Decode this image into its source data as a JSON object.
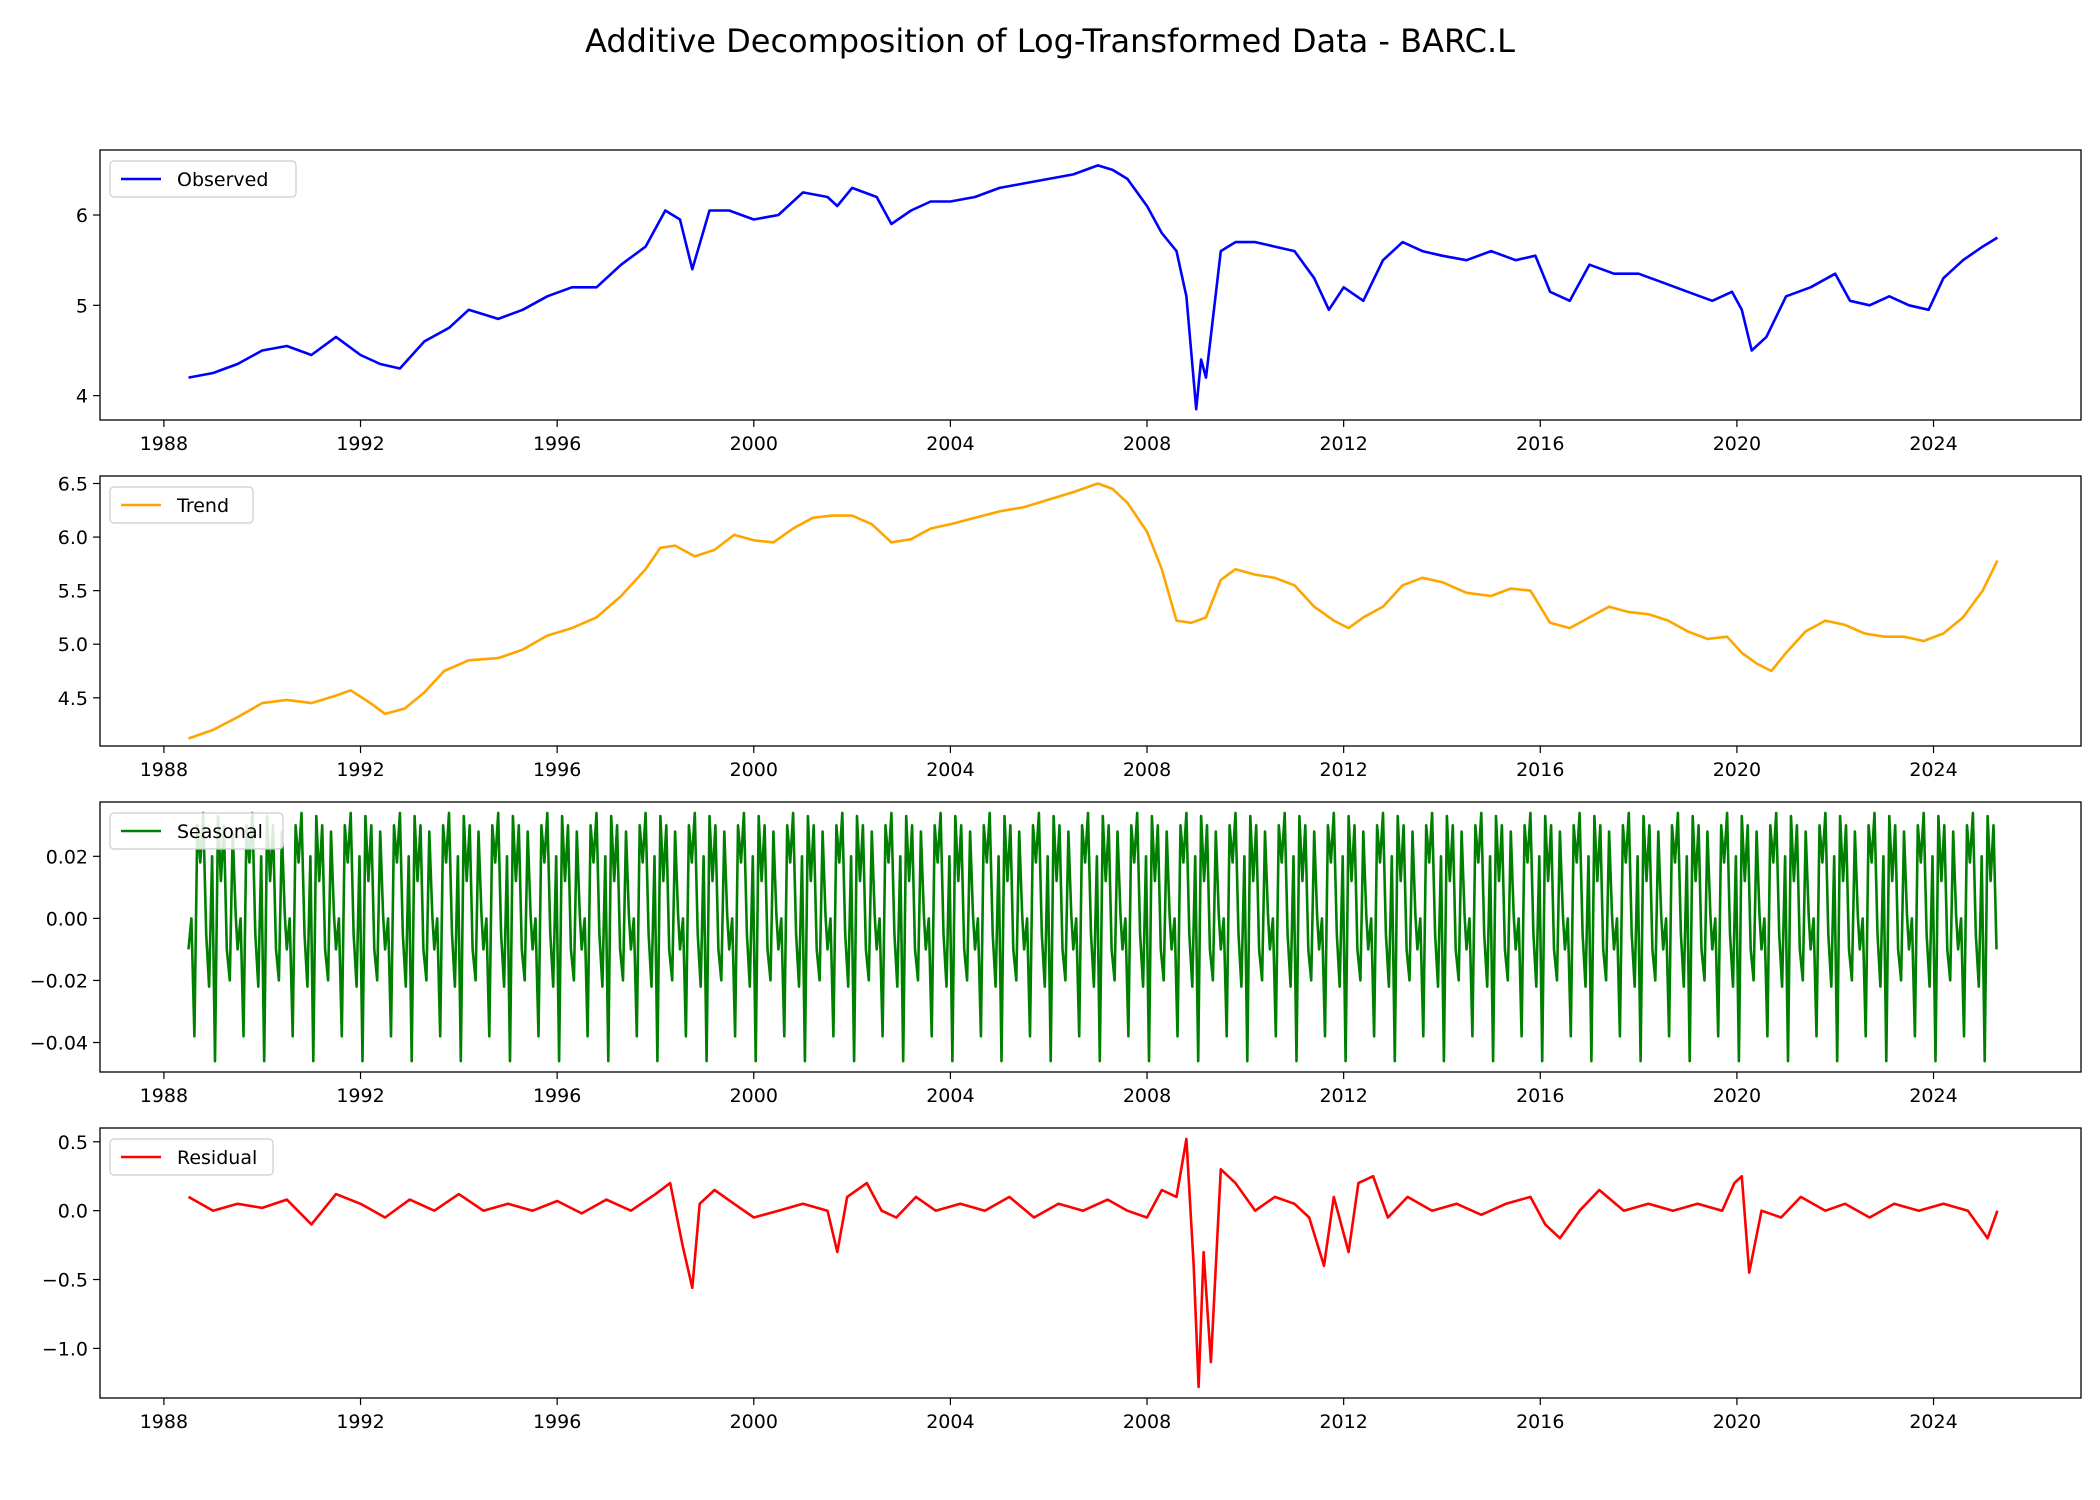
{
  "title": "Additive Decomposition of Log-Transformed Data - BARC.L",
  "chart_data": [
    {
      "type": "line",
      "legend": "Observed",
      "legend_position": "upper-left",
      "color": "#0000ff",
      "x_domain": [
        1986.7,
        2027.0
      ],
      "ylim": [
        3.73,
        6.72
      ],
      "xticks": [
        1988,
        1992,
        1996,
        2000,
        2004,
        2008,
        2012,
        2016,
        2020,
        2024
      ],
      "yticks": [
        {
          "v": 4,
          "label": "4"
        },
        {
          "v": 5,
          "label": "5"
        },
        {
          "v": 6,
          "label": "6"
        }
      ],
      "x": [
        1988.5,
        1989.0,
        1989.5,
        1990.0,
        1990.5,
        1991.0,
        1991.5,
        1992.0,
        1992.4,
        1992.8,
        1993.3,
        1993.8,
        1994.2,
        1994.8,
        1995.3,
        1995.8,
        1996.3,
        1996.8,
        1997.3,
        1997.8,
        1998.2,
        1998.5,
        1998.75,
        1999.1,
        1999.5,
        2000.0,
        2000.5,
        2001.0,
        2001.5,
        2001.7,
        2002.0,
        2002.5,
        2002.8,
        2003.2,
        2003.6,
        2004.0,
        2004.5,
        2005.0,
        2005.5,
        2006.0,
        2006.5,
        2007.0,
        2007.3,
        2007.6,
        2008.0,
        2008.3,
        2008.6,
        2008.8,
        2009.0,
        2009.1,
        2009.2,
        2009.5,
        2009.8,
        2010.2,
        2010.6,
        2011.0,
        2011.4,
        2011.7,
        2012.0,
        2012.4,
        2012.8,
        2013.2,
        2013.6,
        2014.0,
        2014.5,
        2015.0,
        2015.5,
        2015.9,
        2016.2,
        2016.6,
        2017.0,
        2017.5,
        2018.0,
        2018.5,
        2019.0,
        2019.5,
        2019.9,
        2020.1,
        2020.3,
        2020.6,
        2021.0,
        2021.5,
        2022.0,
        2022.3,
        2022.7,
        2023.1,
        2023.5,
        2023.9,
        2024.2,
        2024.6,
        2025.0,
        2025.3
      ],
      "y": [
        4.2,
        4.25,
        4.35,
        4.5,
        4.55,
        4.45,
        4.65,
        4.45,
        4.35,
        4.3,
        4.6,
        4.75,
        4.95,
        4.85,
        4.95,
        5.1,
        5.2,
        5.2,
        5.45,
        5.65,
        6.05,
        5.95,
        5.4,
        6.05,
        6.05,
        5.95,
        6.0,
        6.25,
        6.2,
        6.1,
        6.3,
        6.2,
        5.9,
        6.05,
        6.15,
        6.15,
        6.2,
        6.3,
        6.35,
        6.4,
        6.45,
        6.55,
        6.5,
        6.4,
        6.1,
        5.8,
        5.6,
        5.1,
        3.85,
        4.4,
        4.2,
        5.6,
        5.7,
        5.7,
        5.65,
        5.6,
        5.3,
        4.95,
        5.2,
        5.05,
        5.5,
        5.7,
        5.6,
        5.55,
        5.5,
        5.6,
        5.5,
        5.55,
        5.15,
        5.05,
        5.45,
        5.35,
        5.35,
        5.25,
        5.15,
        5.05,
        5.15,
        4.95,
        4.5,
        4.65,
        5.1,
        5.2,
        5.35,
        5.05,
        5.0,
        5.1,
        5.0,
        4.95,
        5.3,
        5.5,
        5.65,
        5.75
      ]
    },
    {
      "type": "line",
      "legend": "Trend",
      "legend_position": "upper-left",
      "color": "#ffa500",
      "x_domain": [
        1986.7,
        2027.0
      ],
      "ylim": [
        4.05,
        6.57
      ],
      "xticks": [
        1988,
        1992,
        1996,
        2000,
        2004,
        2008,
        2012,
        2016,
        2020,
        2024
      ],
      "yticks": [
        {
          "v": 4.5,
          "label": "4.5"
        },
        {
          "v": 5.0,
          "label": "5.0"
        },
        {
          "v": 5.5,
          "label": "5.5"
        },
        {
          "v": 6.0,
          "label": "6.0"
        },
        {
          "v": 6.5,
          "label": "6.5"
        }
      ],
      "x": [
        1988.5,
        1989.0,
        1989.5,
        1990.0,
        1990.5,
        1991.0,
        1991.5,
        1991.8,
        1992.2,
        1992.5,
        1992.9,
        1993.3,
        1993.7,
        1994.2,
        1994.8,
        1995.3,
        1995.8,
        1996.3,
        1996.8,
        1997.3,
        1997.8,
        1998.1,
        1998.4,
        1998.8,
        1999.2,
        1999.6,
        2000.0,
        2000.4,
        2000.8,
        2001.2,
        2001.6,
        2002.0,
        2002.4,
        2002.8,
        2003.2,
        2003.6,
        2004.0,
        2004.5,
        2005.0,
        2005.5,
        2006.0,
        2006.5,
        2007.0,
        2007.3,
        2007.6,
        2008.0,
        2008.3,
        2008.6,
        2008.9,
        2009.2,
        2009.5,
        2009.8,
        2010.2,
        2010.6,
        2011.0,
        2011.4,
        2011.8,
        2012.1,
        2012.4,
        2012.8,
        2013.2,
        2013.6,
        2014.0,
        2014.5,
        2015.0,
        2015.4,
        2015.8,
        2016.2,
        2016.6,
        2017.0,
        2017.4,
        2017.8,
        2018.2,
        2018.6,
        2019.0,
        2019.4,
        2019.8,
        2020.1,
        2020.4,
        2020.7,
        2021.0,
        2021.4,
        2021.8,
        2022.2,
        2022.6,
        2023.0,
        2023.4,
        2023.8,
        2024.2,
        2024.6,
        2025.0,
        2025.3
      ],
      "y": [
        4.12,
        4.2,
        4.32,
        4.45,
        4.48,
        4.45,
        4.52,
        4.57,
        4.45,
        4.35,
        4.4,
        4.55,
        4.75,
        4.85,
        4.87,
        4.95,
        5.08,
        5.15,
        5.25,
        5.45,
        5.7,
        5.9,
        5.92,
        5.82,
        5.88,
        6.02,
        5.97,
        5.95,
        6.08,
        6.18,
        6.2,
        6.2,
        6.12,
        5.95,
        5.98,
        6.08,
        6.12,
        6.18,
        6.24,
        6.28,
        6.35,
        6.42,
        6.5,
        6.45,
        6.32,
        6.05,
        5.7,
        5.22,
        5.2,
        5.25,
        5.6,
        5.7,
        5.65,
        5.62,
        5.55,
        5.35,
        5.22,
        5.15,
        5.25,
        5.35,
        5.55,
        5.62,
        5.58,
        5.48,
        5.45,
        5.52,
        5.5,
        5.2,
        5.15,
        5.25,
        5.35,
        5.3,
        5.28,
        5.22,
        5.12,
        5.05,
        5.07,
        4.92,
        4.82,
        4.75,
        4.92,
        5.12,
        5.22,
        5.18,
        5.1,
        5.07,
        5.07,
        5.03,
        5.1,
        5.25,
        5.5,
        5.78
      ]
    },
    {
      "type": "line",
      "legend": "Seasonal",
      "legend_position": "upper-left",
      "color": "#008000",
      "x_domain": [
        1986.7,
        2027.0
      ],
      "ylim": [
        -0.0495,
        0.0375
      ],
      "xticks": [
        1988,
        1992,
        1996,
        2000,
        2004,
        2008,
        2012,
        2016,
        2020,
        2024
      ],
      "yticks": [
        {
          "v": -0.04,
          "label": "−0.04"
        },
        {
          "v": -0.02,
          "label": "−0.02"
        },
        {
          "v": 0.0,
          "label": "0.00"
        },
        {
          "v": 0.02,
          "label": "0.02"
        }
      ],
      "start": 1988.5,
      "end": 2025.3,
      "period_years": 1.0,
      "cycle_phase": [
        0.0,
        0.06,
        0.12,
        0.18,
        0.24,
        0.3,
        0.36,
        0.42,
        0.48,
        0.54,
        0.6,
        0.66,
        0.72,
        0.78,
        0.84,
        0.9,
        0.96
      ],
      "cycle_values": [
        -0.01,
        0.0,
        -0.038,
        0.03,
        0.018,
        0.034,
        -0.005,
        -0.022,
        0.02,
        -0.046,
        0.033,
        0.012,
        0.03,
        -0.01,
        -0.02,
        0.028,
        0.001
      ],
      "value_min": -0.046,
      "value_max": 0.034
    },
    {
      "type": "line",
      "legend": "Residual",
      "legend_position": "upper-left",
      "color": "#ff0000",
      "x_domain": [
        1986.7,
        2027.0
      ],
      "ylim": [
        -1.36,
        0.6
      ],
      "xticks": [
        1988,
        1992,
        1996,
        2000,
        2004,
        2008,
        2012,
        2016,
        2020,
        2024
      ],
      "yticks": [
        {
          "v": -1.0,
          "label": "−1.0"
        },
        {
          "v": -0.5,
          "label": "−0.5"
        },
        {
          "v": 0.0,
          "label": "0.0"
        },
        {
          "v": 0.5,
          "label": "0.5"
        }
      ],
      "x": [
        1988.5,
        1989.0,
        1989.5,
        1990.0,
        1990.5,
        1991.0,
        1991.5,
        1992.0,
        1992.5,
        1993.0,
        1993.5,
        1994.0,
        1994.5,
        1995.0,
        1995.5,
        1996.0,
        1996.5,
        1997.0,
        1997.5,
        1998.0,
        1998.3,
        1998.55,
        1998.75,
        1998.9,
        1999.2,
        1999.6,
        2000.0,
        2000.5,
        2001.0,
        2001.5,
        2001.7,
        2001.9,
        2002.3,
        2002.6,
        2002.9,
        2003.3,
        2003.7,
        2004.2,
        2004.7,
        2005.2,
        2005.7,
        2006.2,
        2006.7,
        2007.2,
        2007.6,
        2008.0,
        2008.3,
        2008.6,
        2008.8,
        2008.95,
        2009.05,
        2009.15,
        2009.3,
        2009.5,
        2009.8,
        2010.2,
        2010.6,
        2011.0,
        2011.3,
        2011.6,
        2011.8,
        2012.1,
        2012.3,
        2012.6,
        2012.9,
        2013.3,
        2013.8,
        2014.3,
        2014.8,
        2015.3,
        2015.8,
        2016.1,
        2016.4,
        2016.8,
        2017.2,
        2017.7,
        2018.2,
        2018.7,
        2019.2,
        2019.7,
        2019.95,
        2020.1,
        2020.25,
        2020.5,
        2020.9,
        2021.3,
        2021.8,
        2022.2,
        2022.7,
        2023.2,
        2023.7,
        2024.2,
        2024.7,
        2025.1,
        2025.3
      ],
      "y": [
        0.1,
        0.0,
        0.05,
        0.02,
        0.08,
        -0.1,
        0.12,
        0.05,
        -0.05,
        0.08,
        0.0,
        0.12,
        0.0,
        0.05,
        0.0,
        0.07,
        -0.02,
        0.08,
        0.0,
        0.12,
        0.2,
        -0.25,
        -0.56,
        0.05,
        0.15,
        0.05,
        -0.05,
        0.0,
        0.05,
        0.0,
        -0.3,
        0.1,
        0.2,
        0.0,
        -0.05,
        0.1,
        0.0,
        0.05,
        0.0,
        0.1,
        -0.05,
        0.05,
        0.0,
        0.08,
        0.0,
        -0.05,
        0.15,
        0.1,
        0.52,
        -0.4,
        -1.28,
        -0.3,
        -1.1,
        0.3,
        0.2,
        0.0,
        0.1,
        0.05,
        -0.05,
        -0.4,
        0.1,
        -0.3,
        0.2,
        0.25,
        -0.05,
        0.1,
        0.0,
        0.05,
        -0.03,
        0.05,
        0.1,
        -0.1,
        -0.2,
        0.0,
        0.15,
        0.0,
        0.05,
        0.0,
        0.05,
        0.0,
        0.2,
        0.25,
        -0.45,
        0.0,
        -0.05,
        0.1,
        0.0,
        0.05,
        -0.05,
        0.05,
        0.0,
        0.05,
        0.0,
        -0.2,
        0.0
      ]
    }
  ]
}
